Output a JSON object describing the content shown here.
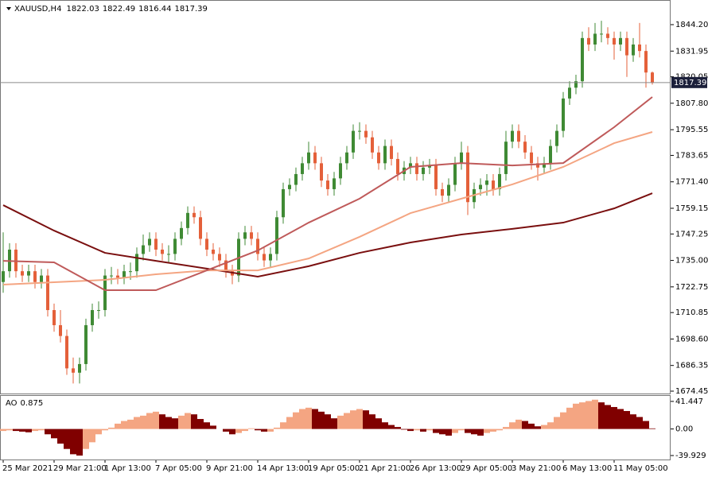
{
  "chart_data": {
    "type": "candlestick",
    "symbol": "XAUUSD,H4",
    "categories": [
      "25 Mar 2021",
      null,
      null,
      null,
      null,
      null,
      null,
      null,
      "29 Mar 21:00",
      null,
      null,
      null,
      null,
      null,
      null,
      null,
      "1 Apr 13:00",
      null,
      null,
      null,
      null,
      null,
      null,
      null,
      "7 Apr 05:00",
      null,
      null,
      null,
      null,
      null,
      null,
      null,
      "9 Apr 21:00",
      null,
      null,
      null,
      null,
      null,
      null,
      null,
      "14 Apr 13:00",
      null,
      null,
      null,
      null,
      null,
      null,
      null,
      "19 Apr 05:00",
      null,
      null,
      null,
      null,
      null,
      null,
      null,
      "21 Apr 21:00",
      null,
      null,
      null,
      null,
      null,
      null,
      null,
      "26 Apr 13:00",
      null,
      null,
      null,
      null,
      null,
      null,
      null,
      "29 Apr 05:00",
      null,
      null,
      null,
      null,
      null,
      null,
      null,
      "3 May 21:00",
      null,
      null,
      null,
      null,
      null,
      null,
      null,
      "6 May 13:00",
      null,
      null,
      null,
      null,
      null,
      null,
      null,
      "11 May 05:00",
      null,
      null,
      null,
      null,
      null,
      null
    ],
    "open": [
      1725,
      1730,
      1740,
      1730,
      1728,
      1730,
      1725,
      1728,
      1712,
      1705,
      1700,
      1685,
      1683,
      1687,
      1705,
      1712,
      1712,
      1728,
      1728,
      1727,
      1730,
      1730,
      1738,
      1742,
      1745,
      1740,
      1738,
      1738,
      1745,
      1750,
      1757,
      1755,
      1745,
      1740,
      1738,
      1735,
      1730,
      1728,
      1745,
      1748,
      1745,
      1738,
      1735,
      1738,
      1755,
      1768,
      1770,
      1775,
      1780,
      1785,
      1780,
      1772,
      1768,
      1773,
      1780,
      1785,
      1795,
      1795,
      1792,
      1785,
      1780,
      1788,
      1782,
      1775,
      1778,
      1780,
      1775,
      1778,
      1779,
      1768,
      1765,
      1770,
      1780,
      1785,
      1762,
      1768,
      1770,
      1772,
      1768,
      1775,
      1790,
      1795,
      1790,
      1785,
      1780,
      1778,
      1780,
      1788,
      1795,
      1810,
      1815,
      1818,
      1838,
      1835,
      1840,
      1840,
      1838,
      1835,
      1838,
      1830,
      1835,
      1832,
      1822.03
    ],
    "high": [
      1748,
      1743,
      1743,
      1733,
      1733,
      1733,
      1731,
      1731,
      1715,
      1712,
      1703,
      1690,
      1690,
      1708,
      1715,
      1716,
      1731,
      1732,
      1731,
      1733,
      1734,
      1741,
      1747,
      1748,
      1748,
      1743,
      1742,
      1748,
      1753,
      1760,
      1760,
      1758,
      1748,
      1743,
      1741,
      1738,
      1733,
      1748,
      1751,
      1751,
      1748,
      1741,
      1741,
      1758,
      1771,
      1773,
      1778,
      1783,
      1790,
      1788,
      1783,
      1775,
      1776,
      1783,
      1788,
      1798,
      1799,
      1798,
      1795,
      1788,
      1791,
      1791,
      1785,
      1781,
      1783,
      1783,
      1781,
      1782,
      1782,
      1771,
      1773,
      1783,
      1790,
      1788,
      1771,
      1773,
      1775,
      1775,
      1778,
      1795,
      1798,
      1798,
      1793,
      1788,
      1783,
      1783,
      1791,
      1798,
      1813,
      1818,
      1821,
      1841,
      1843,
      1845,
      1846,
      1843,
      1841,
      1841,
      1841,
      1838,
      1845,
      1835,
      1822.49
    ],
    "low": [
      1720,
      1727,
      1727,
      1725,
      1725,
      1722,
      1722,
      1709,
      1702,
      1697,
      1682,
      1678,
      1678,
      1684,
      1702,
      1708,
      1709,
      1724,
      1724,
      1724,
      1726,
      1727,
      1735,
      1739,
      1737,
      1735,
      1734,
      1735,
      1742,
      1747,
      1752,
      1742,
      1737,
      1735,
      1732,
      1727,
      1724,
      1725,
      1742,
      1742,
      1735,
      1732,
      1732,
      1735,
      1752,
      1765,
      1767,
      1772,
      1777,
      1777,
      1769,
      1765,
      1765,
      1770,
      1777,
      1782,
      1791,
      1789,
      1782,
      1777,
      1777,
      1779,
      1772,
      1772,
      1775,
      1772,
      1772,
      1775,
      1765,
      1762,
      1762,
      1767,
      1777,
      1756,
      1759,
      1765,
      1765,
      1765,
      1765,
      1772,
      1787,
      1787,
      1782,
      1777,
      1772,
      1775,
      1777,
      1785,
      1792,
      1807,
      1812,
      1815,
      1832,
      1832,
      1836,
      1835,
      1828,
      1832,
      1820,
      1827,
      1829,
      1815,
      1816.44
    ],
    "close": [
      1730,
      1740,
      1730,
      1728,
      1730,
      1725,
      1728,
      1712,
      1705,
      1700,
      1685,
      1683,
      1687,
      1705,
      1712,
      1712,
      1728,
      1728,
      1727,
      1730,
      1730,
      1738,
      1742,
      1745,
      1740,
      1738,
      1738,
      1745,
      1750,
      1757,
      1755,
      1745,
      1740,
      1738,
      1735,
      1730,
      1728,
      1745,
      1748,
      1745,
      1738,
      1735,
      1738,
      1755,
      1768,
      1770,
      1775,
      1780,
      1785,
      1780,
      1772,
      1768,
      1773,
      1780,
      1785,
      1795,
      1795,
      1792,
      1785,
      1780,
      1788,
      1782,
      1775,
      1778,
      1780,
      1775,
      1778,
      1779,
      1768,
      1765,
      1770,
      1780,
      1785,
      1762,
      1768,
      1770,
      1772,
      1768,
      1775,
      1790,
      1795,
      1790,
      1785,
      1780,
      1778,
      1780,
      1788,
      1795,
      1810,
      1815,
      1818,
      1838,
      1835,
      1840,
      1840,
      1838,
      1835,
      1838,
      1830,
      1835,
      1832,
      1822.03,
      1817.39
    ],
    "up_color": "#3f8a34",
    "down_color": "#e4603a",
    "ylim": [
      1673.35,
      1854.88
    ],
    "yticks": [
      {
        "value": 1844.2,
        "label": "1844.20"
      },
      {
        "value": 1831.95,
        "label": "1831.95"
      },
      {
        "value": 1820.05,
        "label": "1820.05"
      },
      {
        "value": 1807.8,
        "label": "1807.80"
      },
      {
        "value": 1795.55,
        "label": "1795.55"
      },
      {
        "value": 1783.65,
        "label": "1783.65"
      },
      {
        "value": 1771.4,
        "label": "1771.40"
      },
      {
        "value": 1759.15,
        "label": "1759.15"
      },
      {
        "value": 1747.25,
        "label": "1747.25"
      },
      {
        "value": 1735,
        "label": "1735.00"
      },
      {
        "value": 1722.75,
        "label": "1722.75"
      },
      {
        "value": 1710.85,
        "label": "1710.85"
      },
      {
        "value": 1698.6,
        "label": "1698.60"
      },
      {
        "value": 1686.35,
        "label": "1686.35"
      },
      {
        "value": 1674.45,
        "label": "1674.45"
      }
    ],
    "moving_averages": [
      {
        "color": "#7a0f0f",
        "x": [
          0,
          8,
          16,
          24,
          32,
          40,
          48,
          56,
          64,
          72,
          80,
          88,
          96,
          102
        ],
        "values": [
          1760.6,
          1748.8,
          1738.5,
          1734.8,
          1731.2,
          1727.5,
          1732.3,
          1738.5,
          1743.3,
          1747.0,
          1749.6,
          1752.5,
          1759.1,
          1766.1
        ]
      },
      {
        "color": "#f4a582",
        "x": [
          0,
          8,
          16,
          24,
          32,
          40,
          48,
          56,
          64,
          72,
          80,
          88,
          96,
          102
        ],
        "values": [
          1723.8,
          1724.9,
          1726.0,
          1728.6,
          1730.4,
          1730.4,
          1735.9,
          1745.9,
          1756.9,
          1763.6,
          1770.2,
          1778.3,
          1789.3,
          1794.5
        ]
      },
      {
        "color": "#bf5a5a",
        "x": [
          0,
          8,
          16,
          24,
          32,
          40,
          48,
          56,
          64,
          72,
          80,
          88,
          96,
          102
        ],
        "values": [
          1734.8,
          1734.1,
          1721.2,
          1721.2,
          1730.4,
          1739.6,
          1752.5,
          1763.6,
          1778.3,
          1780.1,
          1779.0,
          1780.1,
          1796.7,
          1810.7
        ]
      }
    ],
    "indicator": {
      "type": "bar",
      "name": "AO",
      "values": [
        -3,
        -2,
        -3,
        -4,
        -5,
        -3,
        -2,
        -8,
        -14,
        -22,
        -30,
        -38,
        -40,
        -30,
        -20,
        -8,
        -2,
        2,
        8,
        12,
        14,
        18,
        20,
        24,
        26,
        22,
        18,
        16,
        20,
        24,
        22,
        15,
        10,
        5,
        0,
        -4,
        -8,
        -6,
        -3,
        1,
        -2,
        -4,
        -4,
        2,
        10,
        18,
        25,
        30,
        32,
        30,
        26,
        22,
        16,
        20,
        24,
        28,
        30,
        28,
        22,
        16,
        10,
        6,
        3,
        -1,
        -3,
        -2,
        -4,
        -2,
        -6,
        -8,
        -10,
        -6,
        -2,
        -6,
        -8,
        -10,
        -6,
        -4,
        -2,
        3,
        10,
        14,
        12,
        8,
        4,
        6,
        10,
        18,
        25,
        32,
        38,
        40,
        42,
        44,
        40,
        36,
        33,
        30,
        27,
        22,
        18,
        12,
        0.875
      ],
      "up_color": "#f4a582",
      "down_color": "#800000",
      "ylim": [
        -45.9,
        49.7
      ],
      "yticks": [
        41.447,
        {
          "value": 0,
          "label": "0.00"
        },
        -39.929
      ]
    }
  }
}
